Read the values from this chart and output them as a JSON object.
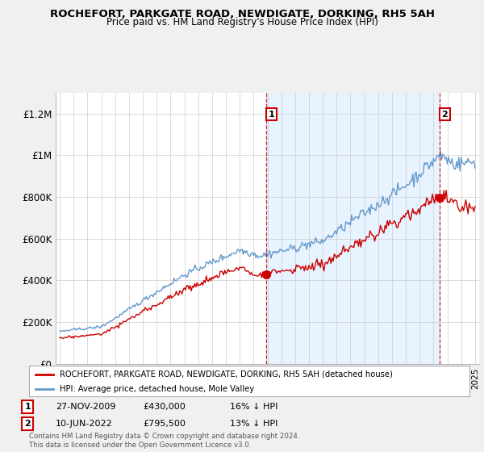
{
  "title": "ROCHEFORT, PARKGATE ROAD, NEWDIGATE, DORKING, RH5 5AH",
  "subtitle": "Price paid vs. HM Land Registry's House Price Index (HPI)",
  "legend_line1": "ROCHEFORT, PARKGATE ROAD, NEWDIGATE, DORKING, RH5 5AH (detached house)",
  "legend_line2": "HPI: Average price, detached house, Mole Valley",
  "annotation1_label": "1",
  "annotation1_date": "27-NOV-2009",
  "annotation1_price": "£430,000",
  "annotation1_hpi": "16% ↓ HPI",
  "annotation1_year": 2009.92,
  "annotation1_value": 430000,
  "annotation2_label": "2",
  "annotation2_date": "10-JUN-2022",
  "annotation2_price": "£795,500",
  "annotation2_hpi": "13% ↓ HPI",
  "annotation2_year": 2022.44,
  "annotation2_value": 795500,
  "price_color": "#cc0000",
  "hpi_color": "#6699cc",
  "hpi_fill_color": "#ddeeff",
  "vline_color": "#cc0000",
  "footer": "Contains HM Land Registry data © Crown copyright and database right 2024.\nThis data is licensed under the Open Government Licence v3.0.",
  "ylim": [
    0,
    1300000
  ],
  "yticks": [
    0,
    200000,
    400000,
    600000,
    800000,
    1000000,
    1200000
  ],
  "ytick_labels": [
    "£0",
    "£200K",
    "£400K",
    "£600K",
    "£800K",
    "£1M",
    "£1.2M"
  ],
  "background_color": "#f0f0f0",
  "plot_bg_color": "#ffffff"
}
